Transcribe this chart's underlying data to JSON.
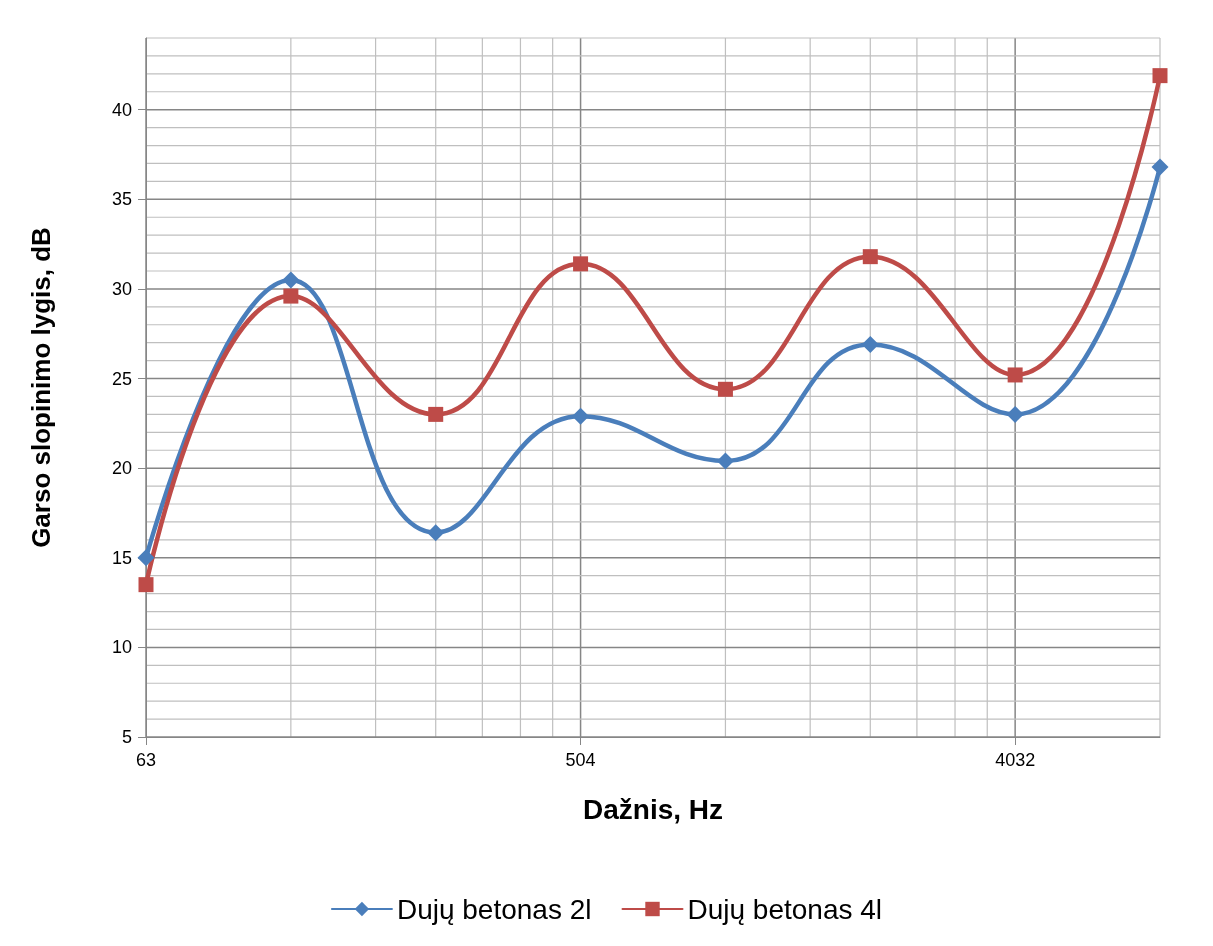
{
  "chart_data": {
    "type": "line",
    "xlabel": "Dažnis, Hz",
    "ylabel": "Garso slopinimo lygis, dB",
    "x": [
      63,
      126,
      252,
      504,
      1008,
      2016,
      4032,
      8064
    ],
    "series": [
      {
        "name": "Dujų betonas 2l",
        "color": "#4a7ebb",
        "marker": "diamond",
        "values": [
          15,
          30.5,
          16.4,
          22.9,
          20.4,
          26.9,
          23,
          36.8
        ]
      },
      {
        "name": "Dujų betonas 4l",
        "color": "#be4b48",
        "marker": "square",
        "values": [
          13.5,
          29.6,
          23,
          31.4,
          24.4,
          31.8,
          25.2,
          41.9
        ]
      }
    ],
    "log": "x",
    "xlim": [
      63,
      8064
    ],
    "xticks": [
      63,
      {
        "value": 126,
        "label": null
      },
      {
        "value": 189,
        "label": null
      },
      {
        "value": 252,
        "label": null
      },
      {
        "value": 315,
        "label": null
      },
      {
        "value": 378,
        "label": null
      },
      {
        "value": 441,
        "label": null
      },
      504,
      {
        "value": 1008,
        "label": null
      },
      {
        "value": 1512,
        "label": null
      },
      {
        "value": 2016,
        "label": null
      },
      {
        "value": 2520,
        "label": null
      },
      {
        "value": 3024,
        "label": null
      },
      {
        "value": 3528,
        "label": null
      },
      4032,
      {
        "value": 8064,
        "label": null
      }
    ],
    "ylim": [
      5,
      44
    ],
    "yticks": [
      5,
      {
        "value": 6,
        "label": null
      },
      {
        "value": 7,
        "label": null
      },
      {
        "value": 8,
        "label": null
      },
      {
        "value": 9,
        "label": null
      },
      10,
      {
        "value": 11,
        "label": null
      },
      {
        "value": 12,
        "label": null
      },
      {
        "value": 13,
        "label": null
      },
      {
        "value": 14,
        "label": null
      },
      15,
      {
        "value": 16,
        "label": null
      },
      {
        "value": 17,
        "label": null
      },
      {
        "value": 18,
        "label": null
      },
      {
        "value": 19,
        "label": null
      },
      20,
      {
        "value": 21,
        "label": null
      },
      {
        "value": 22,
        "label": null
      },
      {
        "value": 23,
        "label": null
      },
      {
        "value": 24,
        "label": null
      },
      25,
      {
        "value": 26,
        "label": null
      },
      {
        "value": 27,
        "label": null
      },
      {
        "value": 28,
        "label": null
      },
      {
        "value": 29,
        "label": null
      },
      30,
      {
        "value": 31,
        "label": null
      },
      {
        "value": 32,
        "label": null
      },
      {
        "value": 33,
        "label": null
      },
      {
        "value": 34,
        "label": null
      },
      35,
      {
        "value": 36,
        "label": null
      },
      {
        "value": 37,
        "label": null
      },
      {
        "value": 38,
        "label": null
      },
      {
        "value": 39,
        "label": null
      },
      40,
      {
        "value": 41,
        "label": null
      },
      {
        "value": 42,
        "label": null
      },
      {
        "value": 43,
        "label": null
      },
      {
        "value": 44,
        "label": null
      }
    ],
    "grid": true,
    "legend": "bottom",
    "line_style": "solid"
  }
}
